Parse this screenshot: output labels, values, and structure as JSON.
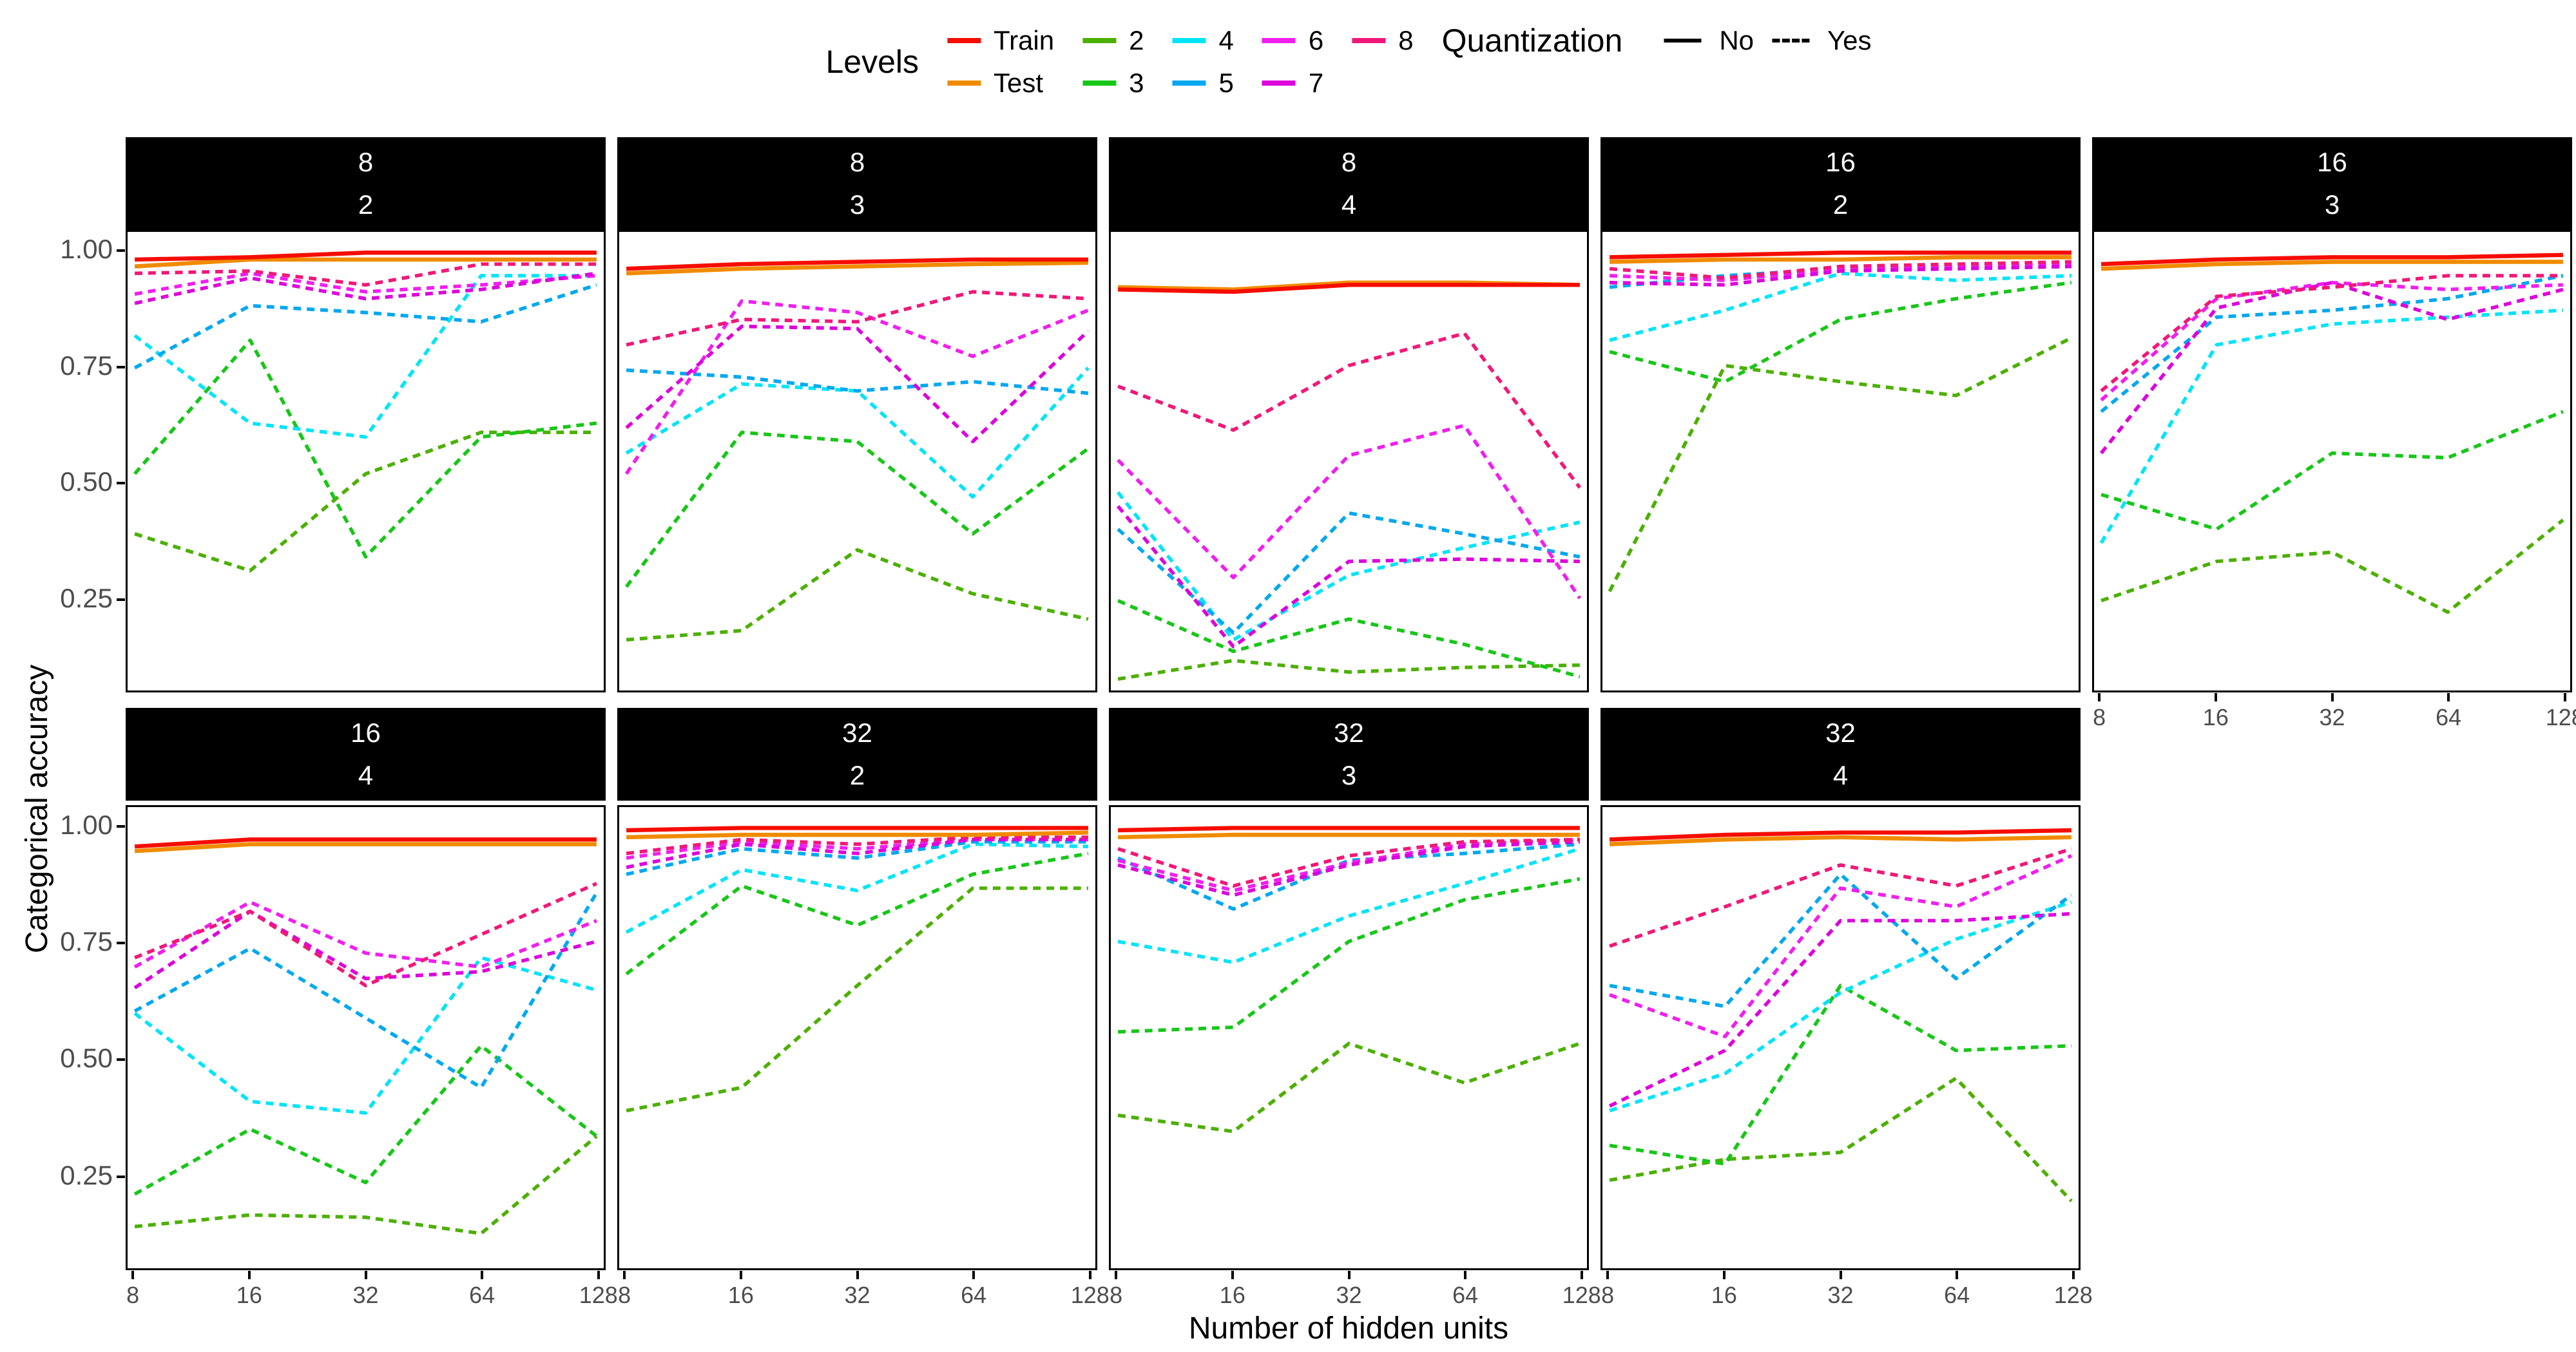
{
  "legend": {
    "levels_title": "Levels",
    "quantization_title": "Quantization",
    "quant_items": [
      {
        "label": "No",
        "style": "solid"
      },
      {
        "label": "Yes",
        "style": "dashed"
      }
    ]
  },
  "axes": {
    "x_title": "Number of hidden units",
    "y_title": "Categorical accuracy",
    "y_tick_labels": [
      "1.00",
      "0.75",
      "0.50",
      "0.25"
    ],
    "x_tick_labels": [
      "8",
      "16",
      "32",
      "64",
      "128"
    ]
  },
  "chart_data": {
    "type": "line",
    "x": [
      8,
      16,
      32,
      64,
      128
    ],
    "x_scale": "log2",
    "xlabel": "Number of hidden units",
    "ylabel": "Categorical accuracy",
    "y_ticks": [
      1.0,
      0.75,
      0.5,
      0.25
    ],
    "ylim": [
      0.05,
      1.045
    ],
    "grid": false,
    "legend_position": "top",
    "facet_labels_are": "two stacked facet variables shown in black strips",
    "series_styles": {
      "Train": {
        "color": "#F50D00",
        "dashed": false
      },
      "Test": {
        "color": "#F08B00",
        "dashed": false
      },
      "2": {
        "color": "#4CB000",
        "dashed": true
      },
      "3": {
        "color": "#17C717",
        "dashed": true
      },
      "4": {
        "color": "#00E4F8",
        "dashed": true
      },
      "5": {
        "color": "#00A8F0",
        "dashed": true
      },
      "6": {
        "color": "#F01EF0",
        "dashed": true
      },
      "7": {
        "color": "#DD00DD",
        "dashed": true
      },
      "8": {
        "color": "#F01878",
        "dashed": true
      }
    },
    "legend_rows": [
      [
        "Train",
        "2",
        "4",
        "6",
        "8"
      ],
      [
        "Test",
        "3",
        "5",
        "7"
      ]
    ],
    "facets": [
      {
        "label1": "8",
        "label2": "2",
        "series": {
          "Train": [
            0.985,
            0.99,
            1.0,
            1.0,
            1.0
          ],
          "Test": [
            0.97,
            0.985,
            0.985,
            0.985,
            0.985
          ],
          "2": [
            0.39,
            0.31,
            0.52,
            0.61,
            0.61
          ],
          "3": [
            0.52,
            0.81,
            0.34,
            0.6,
            0.63
          ],
          "4": [
            0.82,
            0.63,
            0.6,
            0.95,
            0.95
          ],
          "5": [
            0.75,
            0.885,
            0.87,
            0.85,
            0.93
          ],
          "6": [
            0.91,
            0.955,
            0.915,
            0.93,
            0.95
          ],
          "7": [
            0.89,
            0.945,
            0.9,
            0.92,
            0.955
          ],
          "8": [
            0.955,
            0.96,
            0.93,
            0.975,
            0.975
          ]
        }
      },
      {
        "label1": "8",
        "label2": "3",
        "series": {
          "Train": [
            0.965,
            0.975,
            0.98,
            0.985,
            0.985
          ],
          "Test": [
            0.955,
            0.965,
            0.97,
            0.975,
            0.978
          ],
          "2": [
            0.16,
            0.18,
            0.355,
            0.26,
            0.205
          ],
          "3": [
            0.275,
            0.61,
            0.59,
            0.39,
            0.575
          ],
          "4": [
            0.565,
            0.715,
            0.7,
            0.47,
            0.75
          ],
          "5": [
            0.745,
            0.73,
            0.7,
            0.72,
            0.695
          ],
          "6": [
            0.52,
            0.895,
            0.87,
            0.775,
            0.875
          ],
          "7": [
            0.62,
            0.84,
            0.835,
            0.59,
            0.83
          ],
          "8": [
            0.8,
            0.855,
            0.85,
            0.915,
            0.9
          ]
        }
      },
      {
        "label1": "8",
        "label2": "4",
        "series": {
          "Train": [
            0.92,
            0.915,
            0.93,
            0.93,
            0.93
          ],
          "Test": [
            0.925,
            0.92,
            0.935,
            0.935,
            0.93
          ],
          "2": [
            0.075,
            0.115,
            0.09,
            0.1,
            0.105
          ],
          "3": [
            0.245,
            0.135,
            0.205,
            0.15,
            0.08
          ],
          "4": [
            0.48,
            0.16,
            0.3,
            0.36,
            0.415
          ],
          "5": [
            0.4,
            0.175,
            0.435,
            0.39,
            0.34
          ],
          "6": [
            0.55,
            0.295,
            0.56,
            0.625,
            0.25
          ],
          "7": [
            0.45,
            0.145,
            0.33,
            0.335,
            0.33
          ],
          "8": [
            0.71,
            0.615,
            0.755,
            0.825,
            0.49
          ]
        }
      },
      {
        "label1": "16",
        "label2": "2",
        "series": {
          "Train": [
            0.99,
            0.995,
            1.0,
            1.0,
            1.0
          ],
          "Test": [
            0.98,
            0.985,
            0.985,
            0.99,
            0.99
          ],
          "2": [
            0.265,
            0.755,
            0.72,
            0.69,
            0.815
          ],
          "3": [
            0.785,
            0.72,
            0.855,
            0.9,
            0.935
          ],
          "4": [
            0.81,
            0.875,
            0.955,
            0.94,
            0.95
          ],
          "5": [
            0.925,
            0.95,
            0.965,
            0.965,
            0.97
          ],
          "6": [
            0.95,
            0.94,
            0.965,
            0.97,
            0.975
          ],
          "7": [
            0.935,
            0.93,
            0.96,
            0.965,
            0.97
          ],
          "8": [
            0.965,
            0.945,
            0.97,
            0.975,
            0.98
          ]
        }
      },
      {
        "label1": "16",
        "label2": "3",
        "series": {
          "Train": [
            0.975,
            0.985,
            0.99,
            0.99,
            0.995
          ],
          "Test": [
            0.965,
            0.975,
            0.98,
            0.98,
            0.98
          ],
          "2": [
            0.245,
            0.33,
            0.35,
            0.22,
            0.42
          ],
          "3": [
            0.475,
            0.4,
            0.565,
            0.555,
            0.655
          ],
          "4": [
            0.37,
            0.8,
            0.845,
            0.86,
            0.875
          ],
          "5": [
            0.655,
            0.86,
            0.875,
            0.9,
            0.95
          ],
          "6": [
            0.68,
            0.9,
            0.935,
            0.92,
            0.93
          ],
          "7": [
            0.565,
            0.88,
            0.935,
            0.855,
            0.92
          ],
          "8": [
            0.7,
            0.905,
            0.925,
            0.95,
            0.95
          ]
        }
      },
      {
        "label1": "16",
        "label2": "4",
        "series": {
          "Train": [
            0.96,
            0.975,
            0.975,
            0.975,
            0.975
          ],
          "Test": [
            0.95,
            0.965,
            0.965,
            0.965,
            0.965
          ],
          "2": [
            0.14,
            0.165,
            0.16,
            0.125,
            0.335
          ],
          "3": [
            0.21,
            0.35,
            0.235,
            0.53,
            0.335
          ],
          "4": [
            0.6,
            0.41,
            0.385,
            0.72,
            0.65
          ],
          "5": [
            0.605,
            0.74,
            0.59,
            0.44,
            0.86
          ],
          "6": [
            0.7,
            0.84,
            0.73,
            0.7,
            0.8
          ],
          "7": [
            0.655,
            0.82,
            0.675,
            0.69,
            0.755
          ],
          "8": [
            0.72,
            0.82,
            0.66,
            0.77,
            0.88
          ]
        }
      },
      {
        "label1": "32",
        "label2": "2",
        "series": {
          "Train": [
            0.995,
            1.0,
            1.0,
            1.0,
            1.0
          ],
          "Test": [
            0.98,
            0.985,
            0.985,
            0.985,
            0.99
          ],
          "2": [
            0.39,
            0.44,
            0.66,
            0.87,
            0.87
          ],
          "3": [
            0.685,
            0.875,
            0.79,
            0.9,
            0.945
          ],
          "4": [
            0.775,
            0.91,
            0.865,
            0.965,
            0.96
          ],
          "5": [
            0.9,
            0.955,
            0.935,
            0.97,
            0.97
          ],
          "6": [
            0.935,
            0.97,
            0.955,
            0.975,
            0.975
          ],
          "7": [
            0.915,
            0.965,
            0.945,
            0.975,
            0.975
          ],
          "8": [
            0.945,
            0.975,
            0.965,
            0.98,
            0.98
          ]
        }
      },
      {
        "label1": "32",
        "label2": "3",
        "series": {
          "Train": [
            0.995,
            1.0,
            1.0,
            1.0,
            1.0
          ],
          "Test": [
            0.98,
            0.985,
            0.985,
            0.985,
            0.985
          ],
          "2": [
            0.38,
            0.345,
            0.535,
            0.45,
            0.535
          ],
          "3": [
            0.56,
            0.57,
            0.755,
            0.845,
            0.89
          ],
          "4": [
            0.755,
            0.71,
            0.81,
            0.88,
            0.955
          ],
          "5": [
            0.935,
            0.825,
            0.93,
            0.945,
            0.965
          ],
          "6": [
            0.93,
            0.865,
            0.925,
            0.965,
            0.975
          ],
          "7": [
            0.92,
            0.855,
            0.92,
            0.96,
            0.97
          ],
          "8": [
            0.955,
            0.875,
            0.94,
            0.97,
            0.975
          ]
        }
      },
      {
        "label1": "32",
        "label2": "4",
        "series": {
          "Train": [
            0.975,
            0.985,
            0.99,
            0.99,
            0.995
          ],
          "Test": [
            0.965,
            0.975,
            0.98,
            0.975,
            0.98
          ],
          "2": [
            0.24,
            0.285,
            0.3,
            0.46,
            0.195
          ],
          "3": [
            0.315,
            0.275,
            0.66,
            0.52,
            0.53
          ],
          "4": [
            0.39,
            0.47,
            0.645,
            0.76,
            0.84
          ],
          "5": [
            0.66,
            0.615,
            0.9,
            0.675,
            0.855
          ],
          "6": [
            0.64,
            0.55,
            0.87,
            0.83,
            0.94
          ],
          "7": [
            0.4,
            0.52,
            0.8,
            0.8,
            0.815
          ],
          "8": [
            0.745,
            0.83,
            0.92,
            0.875,
            0.955
          ]
        }
      }
    ]
  }
}
